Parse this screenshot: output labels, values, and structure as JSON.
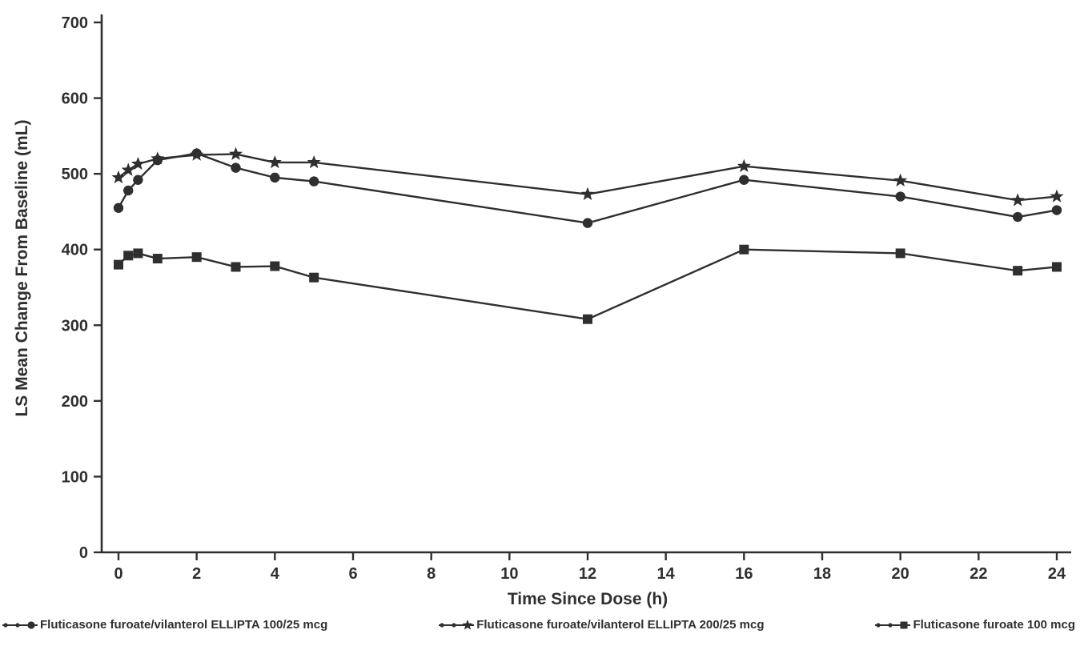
{
  "chart_data": {
    "type": "line",
    "title": "",
    "xlabel": "Time Since Dose (h)",
    "ylabel": "LS Mean Change From Baseline (mL)",
    "xlim": [
      0,
      24
    ],
    "ylim": [
      0,
      700
    ],
    "x_ticks": [
      0,
      2,
      4,
      6,
      8,
      10,
      12,
      14,
      16,
      18,
      20,
      22,
      24
    ],
    "y_ticks": [
      0,
      100,
      200,
      300,
      400,
      500,
      600,
      700
    ],
    "grid": false,
    "legend_position": "bottom",
    "axis_color": "#2f2f2f",
    "line_color": "#2f2f2f",
    "x": [
      0,
      0.25,
      0.5,
      1,
      2,
      3,
      4,
      5,
      12,
      16,
      20,
      23,
      24
    ],
    "series": [
      {
        "name": "Fluticasone furoate/vilanterol ELLIPTA 100/25 mcg",
        "marker": "circle",
        "values": [
          455,
          478,
          492,
          518,
          527,
          508,
          495,
          490,
          435,
          492,
          470,
          443,
          452
        ]
      },
      {
        "name": "Fluticasone furoate/vilanterol ELLIPTA 200/25 mcg",
        "marker": "star",
        "values": [
          495,
          505,
          513,
          520,
          525,
          526,
          515,
          515,
          473,
          510,
          491,
          465,
          470
        ]
      },
      {
        "name": "Fluticasone furoate 100 mcg",
        "marker": "square",
        "values": [
          380,
          392,
          395,
          388,
          390,
          377,
          378,
          363,
          308,
          400,
          395,
          372,
          377
        ]
      }
    ]
  }
}
